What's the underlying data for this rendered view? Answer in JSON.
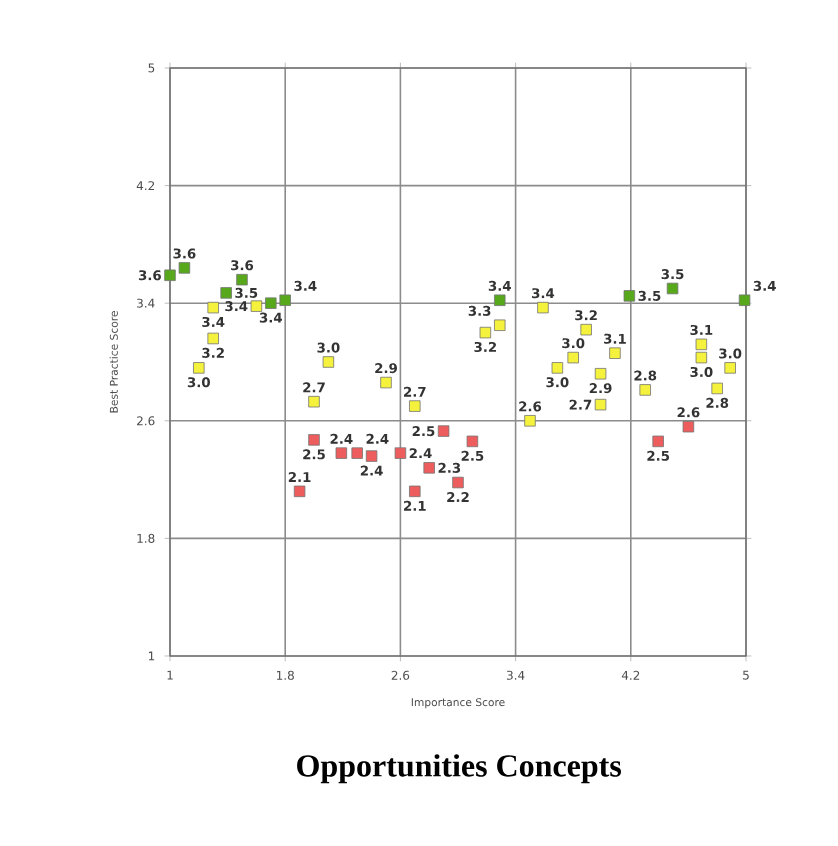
{
  "chart_data": {
    "type": "scatter",
    "title": "Opportunities Concepts",
    "xlabel": "Importance Score",
    "ylabel": "Best Practice Score",
    "xlim": [
      1,
      5
    ],
    "ylim": [
      1,
      5
    ],
    "xticks": [
      1,
      1.8,
      2.6,
      3.4,
      4.2,
      5
    ],
    "yticks": [
      1,
      1.8,
      2.6,
      3.4,
      4.2,
      5
    ],
    "grid": true,
    "marker": "square",
    "series": [
      {
        "color": "#58a81c",
        "x": [
          1.0,
          1.1,
          1.39,
          1.5,
          1.7,
          1.8,
          3.29,
          4.19,
          4.49,
          4.99
        ],
        "values": [
          3.59,
          3.64,
          3.47,
          3.56,
          3.4,
          3.42,
          3.42,
          3.45,
          3.5,
          3.42
        ],
        "value_labels": [
          "3.6",
          "3.6",
          "3.5",
          "3.6",
          "3.4",
          "3.4",
          "3.4",
          "3.5",
          "3.5",
          "3.4"
        ]
      },
      {
        "color": "#f4f23c",
        "x": [
          1.3,
          1.6,
          1.3,
          1.2,
          2.1,
          2.5,
          2.0,
          2.7,
          3.19,
          3.29,
          3.59,
          3.89,
          3.8,
          3.69,
          4.09,
          3.99,
          3.99,
          4.3,
          3.5,
          4.69,
          4.69,
          4.89,
          4.8
        ],
        "values": [
          3.37,
          3.38,
          3.16,
          2.96,
          3.0,
          2.86,
          2.73,
          2.7,
          3.2,
          3.25,
          3.37,
          3.22,
          3.03,
          2.96,
          3.06,
          2.92,
          2.71,
          2.81,
          2.6,
          3.12,
          3.03,
          2.96,
          2.82
        ],
        "value_labels": [
          "3.4",
          "3.4",
          "3.2",
          "3.0",
          "3.0",
          "2.9",
          "2.7",
          "2.7",
          "3.2",
          "3.3",
          "3.4",
          "3.2",
          "3.0",
          "3.0",
          "3.1",
          "2.9",
          "2.7",
          "2.8",
          "2.6",
          "3.1",
          "3.0",
          "3.0",
          "2.8"
        ]
      },
      {
        "color": "#ee5d5d",
        "x": [
          2.0,
          2.19,
          2.3,
          2.4,
          2.6,
          1.9,
          2.9,
          3.1,
          2.8,
          3.0,
          2.7,
          4.39,
          4.6
        ],
        "values": [
          2.47,
          2.38,
          2.38,
          2.36,
          2.38,
          2.12,
          2.53,
          2.46,
          2.28,
          2.18,
          2.12,
          2.46,
          2.56
        ],
        "value_labels": [
          "2.5",
          "2.4",
          "2.4",
          "2.4",
          "2.4",
          "2.1",
          "2.5",
          "2.5",
          "2.3",
          "2.2",
          "2.1",
          "2.5",
          "2.6"
        ]
      }
    ]
  }
}
